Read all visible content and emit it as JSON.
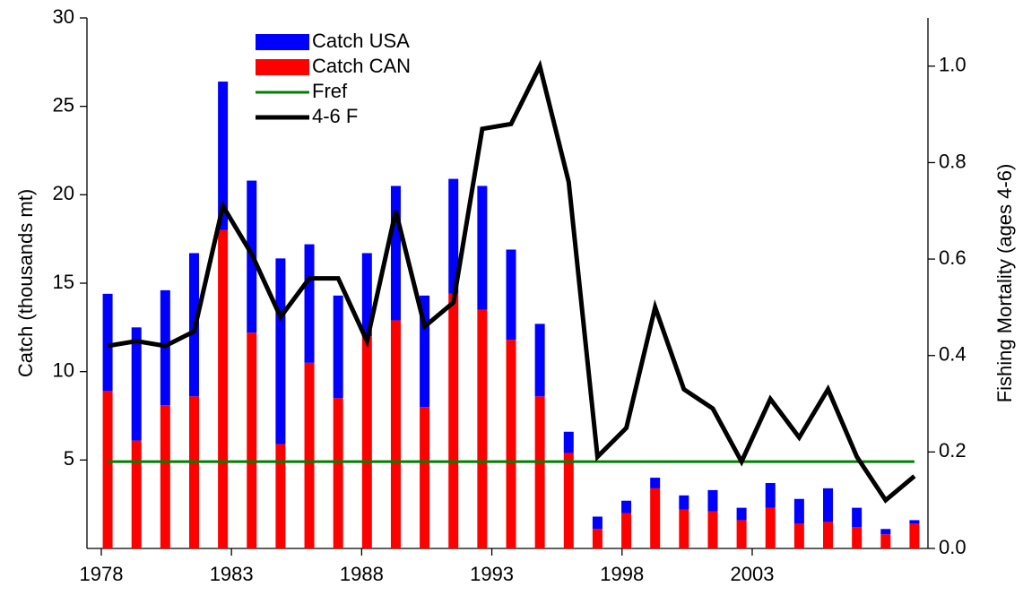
{
  "chart_data": {
    "type": "bar",
    "stacked": true,
    "categories": [
      null,
      null,
      null,
      null,
      null,
      null,
      null,
      null,
      null,
      null,
      null,
      null,
      null,
      null,
      null,
      null,
      null,
      null,
      null,
      null,
      null,
      null,
      null,
      null,
      null,
      null,
      null,
      null,
      null
    ],
    "series": [
      {
        "name": "Catch USA",
        "color": "#0000ff",
        "type": "bar",
        "values": [
          5.5,
          6.4,
          6.5,
          8.1,
          8.4,
          8.6,
          10.5,
          6.7,
          5.8,
          4.7,
          7.6,
          6.3,
          6.5,
          7.0,
          5.1,
          4.1,
          1.2,
          0.7,
          0.7,
          0.6,
          0.8,
          1.2,
          0.7,
          1.4,
          1.4,
          1.9,
          1.1,
          0.3,
          0.2
        ]
      },
      {
        "name": "Catch CAN",
        "color": "#ff0000",
        "type": "bar",
        "values": [
          8.9,
          6.1,
          8.1,
          8.6,
          18.0,
          12.2,
          5.9,
          10.5,
          8.5,
          12.0,
          12.9,
          8.0,
          14.4,
          13.5,
          11.8,
          8.6,
          5.4,
          1.1,
          2.0,
          3.4,
          2.2,
          2.1,
          1.6,
          2.3,
          1.4,
          1.5,
          1.2,
          0.8,
          1.4
        ]
      },
      {
        "name": "Fref",
        "color": "#008000",
        "type": "line",
        "axis": "y2",
        "values": [
          0.18,
          0.18,
          0.18,
          0.18,
          0.18,
          0.18,
          0.18,
          0.18,
          0.18,
          0.18,
          0.18,
          0.18,
          0.18,
          0.18,
          0.18,
          0.18,
          0.18,
          0.18,
          0.18,
          0.18,
          0.18,
          0.18,
          0.18,
          0.18,
          0.18,
          0.18,
          0.18,
          0.18,
          0.18
        ]
      },
      {
        "name": "4-6 F",
        "color": "#000000",
        "type": "line",
        "axis": "y2",
        "values": [
          0.42,
          0.43,
          0.42,
          0.45,
          0.71,
          0.61,
          0.48,
          0.56,
          0.56,
          0.43,
          0.7,
          0.46,
          0.51,
          0.87,
          0.88,
          1.0,
          0.76,
          0.19,
          0.25,
          0.5,
          0.33,
          0.29,
          0.18,
          0.31,
          0.23,
          0.33,
          0.19,
          0.1,
          0.15
        ]
      }
    ],
    "y_label": "Catch (thousands mt)",
    "y2_label": "Fishing Mortality (ages 4-6)",
    "xlim": [
      1977.45,
      2009.75
    ],
    "xticks": [
      1978,
      1983,
      1988,
      1993,
      1998,
      2003
    ],
    "ylim": [
      0,
      30
    ],
    "yticks": [
      5,
      10,
      15,
      20,
      25,
      30
    ],
    "y2lim": [
      0,
      1.1
    ],
    "y2ticks": [
      {
        "value": 0,
        "label": "0.0"
      },
      0.2,
      0.4,
      0.6,
      0.8,
      {
        "value": 1,
        "label": "1.0"
      }
    ],
    "legend": "upper left"
  }
}
